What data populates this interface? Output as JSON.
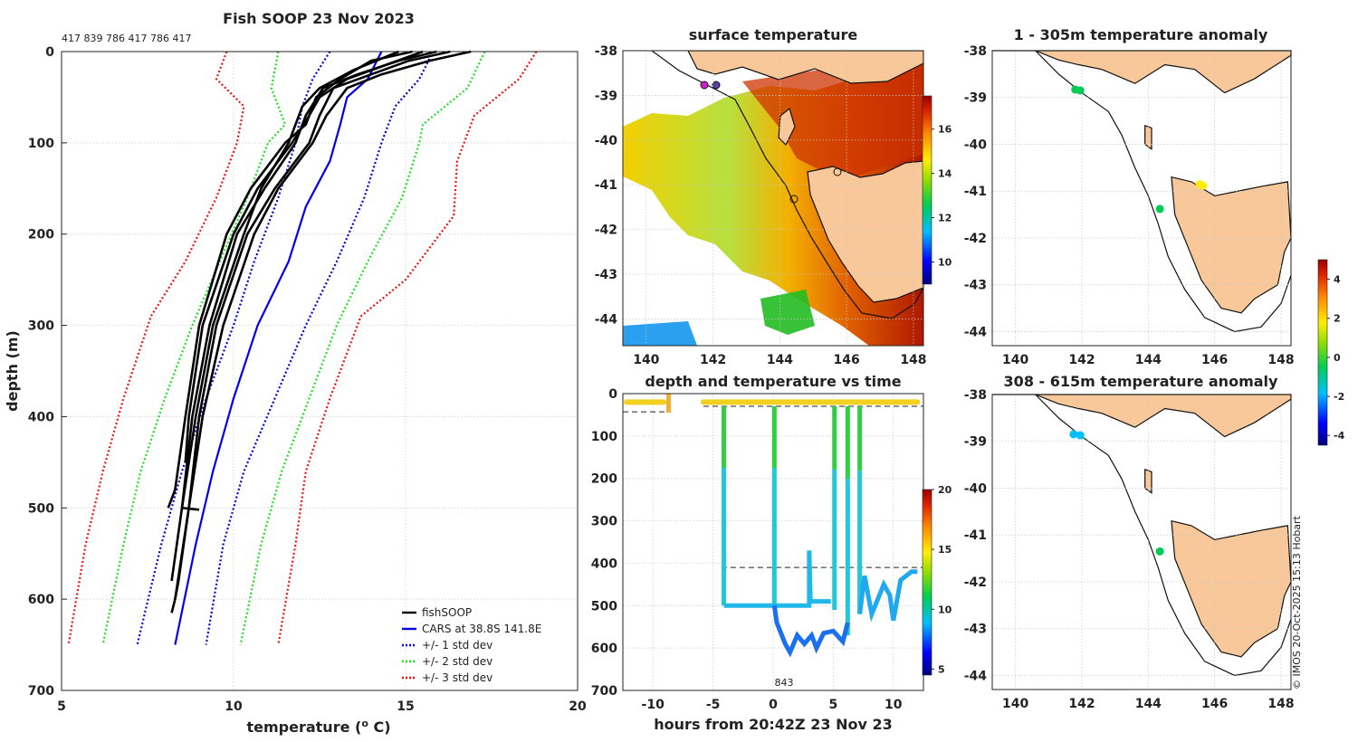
{
  "chart_data": [
    {
      "id": "profile",
      "type": "line",
      "title": "Fish SOOP 23 Nov 2023",
      "top_note": "417 839 786 417 786 417",
      "xlabel": "temperature (°C)",
      "ylabel": "depth (m)",
      "xlim": [
        5,
        20
      ],
      "ylim": [
        700,
        0
      ],
      "xticks": [
        5,
        10,
        15,
        20
      ],
      "yticks": [
        0,
        100,
        200,
        300,
        400,
        500,
        600,
        700
      ],
      "legend": [
        "fishSOOP",
        "CARS at 38.8S 141.8E",
        "+/- 1 std dev",
        "+/- 2 std dev",
        "+/- 3 std dev"
      ],
      "legend_position": "bottom-right",
      "colors": {
        "fishsoop": "#000000",
        "cars": "#0000ee",
        "std1": "#0000dd",
        "std2": "#22dd22",
        "std3": "#ee1111"
      },
      "series": [
        {
          "name": "CARS mean",
          "style": "solid",
          "color": "#0000ee",
          "depth": [
            0,
            30,
            50,
            80,
            120,
            170,
            230,
            300,
            380,
            460,
            540,
            650
          ],
          "temp": [
            14.3,
            13.9,
            13.3,
            13.1,
            12.8,
            12.1,
            11.6,
            10.7,
            10.0,
            9.4,
            8.9,
            8.3
          ]
        },
        {
          "name": "-1 std",
          "style": "dotted",
          "color": "#0000dd",
          "depth": [
            0,
            30,
            60,
            100,
            160,
            230,
            300,
            380,
            460,
            540,
            650
          ],
          "temp": [
            12.8,
            12.3,
            12.0,
            11.8,
            11.3,
            10.6,
            10.0,
            9.2,
            8.5,
            7.9,
            7.2
          ]
        },
        {
          "name": "+1 std",
          "style": "dotted",
          "color": "#0000dd",
          "depth": [
            0,
            30,
            60,
            100,
            160,
            230,
            300,
            380,
            460,
            540,
            650
          ],
          "temp": [
            15.8,
            15.4,
            14.7,
            14.3,
            13.8,
            13.0,
            12.1,
            11.2,
            10.3,
            9.7,
            9.2
          ]
        },
        {
          "name": "-2 std",
          "style": "dotted",
          "color": "#22dd22",
          "depth": [
            0,
            40,
            80,
            100,
            160,
            230,
            300,
            380,
            460,
            540,
            650
          ],
          "temp": [
            11.3,
            11.1,
            11.5,
            11.0,
            10.4,
            9.6,
            8.8,
            8.0,
            7.3,
            6.8,
            6.2
          ]
        },
        {
          "name": "+2 std",
          "style": "dotted",
          "color": "#22dd22",
          "depth": [
            0,
            40,
            80,
            100,
            160,
            230,
            300,
            380,
            460,
            540,
            650
          ],
          "temp": [
            17.3,
            16.8,
            15.5,
            15.4,
            14.9,
            13.9,
            13.0,
            12.2,
            11.4,
            10.8,
            10.2
          ]
        },
        {
          "name": "-3 std",
          "style": "dotted",
          "color": "#ee1111",
          "depth": [
            0,
            30,
            60,
            100,
            160,
            230,
            290,
            380,
            460,
            540,
            650
          ],
          "temp": [
            9.8,
            9.5,
            10.3,
            10.1,
            9.5,
            8.6,
            7.6,
            6.8,
            6.2,
            5.7,
            5.2
          ]
        },
        {
          "name": "+3 std",
          "style": "dotted",
          "color": "#ee1111",
          "depth": [
            0,
            30,
            70,
            120,
            180,
            250,
            290,
            380,
            460,
            540,
            650
          ],
          "temp": [
            18.8,
            18.3,
            17.0,
            16.5,
            16.4,
            15.0,
            13.7,
            12.8,
            12.1,
            11.8,
            11.3
          ]
        }
      ],
      "fishsoop_profiles": [
        {
          "depth": [
            0,
            10,
            25,
            40,
            70,
            100,
            150,
            200,
            300,
            400,
            500,
            600,
            615
          ],
          "temp": [
            16.9,
            15.7,
            14.3,
            13.3,
            12.7,
            12.3,
            11.3,
            10.6,
            9.7,
            9.1,
            8.7,
            8.3,
            8.2
          ]
        },
        {
          "depth": [
            0,
            10,
            25,
            40,
            70,
            100,
            150,
            200,
            300,
            400,
            500,
            580,
            600
          ],
          "temp": [
            16.3,
            15.1,
            14.0,
            12.9,
            12.5,
            12.2,
            11.2,
            10.4,
            9.5,
            9.0,
            8.7,
            8.4,
            8.3
          ]
        },
        {
          "depth": [
            0,
            10,
            25,
            40,
            70,
            100,
            150,
            200,
            300,
            400,
            500,
            580
          ],
          "temp": [
            15.9,
            14.8,
            13.6,
            12.6,
            12.1,
            11.8,
            10.9,
            10.1,
            9.3,
            8.8,
            8.5,
            8.2
          ]
        },
        {
          "depth": [
            0,
            15,
            30,
            50,
            70,
            100,
            150,
            200,
            300,
            400,
            450
          ],
          "temp": [
            15.5,
            14.4,
            13.3,
            12.5,
            12.2,
            11.7,
            10.7,
            10.0,
            9.1,
            8.7,
            8.6
          ]
        },
        {
          "depth": [
            0,
            10,
            30,
            50,
            80,
            100,
            150,
            200,
            300,
            400,
            480,
            500
          ],
          "temp": [
            15.2,
            14.0,
            13.1,
            12.4,
            12.1,
            11.5,
            10.5,
            9.8,
            9.0,
            8.6,
            8.3,
            8.1
          ]
        },
        {
          "depth": [
            0,
            20,
            40,
            60,
            100,
            150,
            200,
            300,
            400,
            500,
            502
          ],
          "temp": [
            14.8,
            13.5,
            12.5,
            12.0,
            11.6,
            10.8,
            10.3,
            9.4,
            8.9,
            8.5,
            9.0
          ]
        }
      ]
    },
    {
      "id": "sst_map",
      "type": "heatmap",
      "title": "surface temperature",
      "xlim": [
        139.3,
        148.3
      ],
      "ylim": [
        -44.6,
        -38
      ],
      "xticks": [
        140,
        142,
        144,
        146,
        148
      ],
      "yticks": [
        -38,
        -39,
        -40,
        -41,
        -42,
        -43,
        -44
      ],
      "colorbar": {
        "range": [
          9,
          17.5
        ],
        "ticks": [
          10,
          12,
          14,
          16
        ]
      }
    },
    {
      "id": "timeseries",
      "type": "scatter",
      "title": "depth and temperature vs time",
      "xlabel": "hours from 20:42Z 23 Nov 23",
      "xlim": [
        -12.5,
        12.5
      ],
      "ylim": [
        700,
        0
      ],
      "xticks": [
        -10,
        -5,
        0,
        5,
        10
      ],
      "yticks": [
        0,
        100,
        200,
        300,
        400,
        500,
        600,
        700
      ],
      "annotation": "843",
      "reference_depths": [
        43,
        30,
        410
      ],
      "colorbar": {
        "range": [
          4.5,
          20
        ],
        "ticks": [
          5,
          10,
          15,
          20
        ]
      }
    },
    {
      "id": "anomaly_shallow",
      "type": "scatter",
      "title": "1 - 305m temperature anomaly",
      "xlim": [
        139.3,
        148.3
      ],
      "ylim": [
        -44.3,
        -38
      ],
      "xticks": [
        140,
        142,
        144,
        146,
        148
      ],
      "yticks": [
        -38,
        -39,
        -40,
        -41,
        -42,
        -43,
        -44
      ],
      "points": [
        {
          "lon": 141.8,
          "lat": -38.83,
          "anomaly": 0.2
        },
        {
          "lon": 141.95,
          "lat": -38.85,
          "anomaly": 0.2
        },
        {
          "lon": 144.35,
          "lat": -41.38,
          "anomaly": 0.1
        },
        {
          "lon": 145.55,
          "lat": -40.85,
          "anomaly": 2.5
        },
        {
          "lon": 145.65,
          "lat": -40.88,
          "anomaly": 2.4
        }
      ]
    },
    {
      "id": "anomaly_deep",
      "type": "scatter",
      "title": "308 - 615m temperature anomaly",
      "xlim": [
        139.3,
        148.3
      ],
      "ylim": [
        -44.3,
        -38
      ],
      "xticks": [
        140,
        142,
        144,
        146,
        148
      ],
      "yticks": [
        -38,
        -39,
        -40,
        -41,
        -42,
        -43,
        -44
      ],
      "colorbar": {
        "range": [
          -4.5,
          5
        ],
        "ticks": [
          -4,
          -2,
          0,
          2,
          4
        ]
      },
      "points": [
        {
          "lon": 141.75,
          "lat": -38.85,
          "anomaly": -0.8
        },
        {
          "lon": 141.95,
          "lat": -38.87,
          "anomaly": -0.8
        },
        {
          "lon": 144.35,
          "lat": -41.35,
          "anomaly": -0.5
        }
      ]
    }
  ],
  "credit": "© IMOS 20-Oct-2025 15:13 Hobart"
}
